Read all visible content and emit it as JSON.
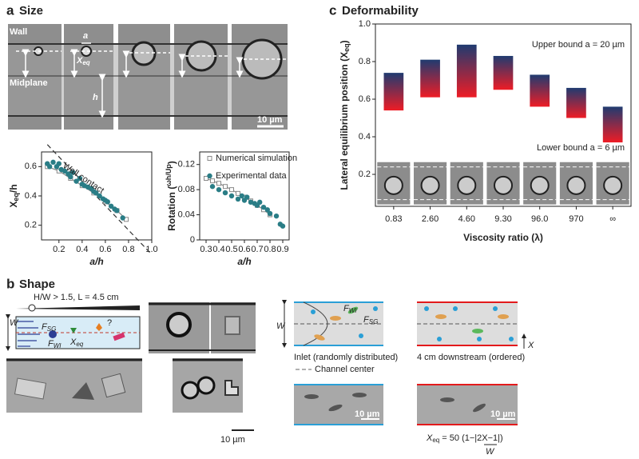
{
  "panel_a": {
    "label": "a",
    "title": "Size",
    "wall": "Wall",
    "midplane": "Midplane",
    "a": "a",
    "xeq": "X",
    "xeq_sub": "eq",
    "h": "h",
    "scale": "10 µm"
  },
  "panel_b": {
    "label": "b",
    "title": "Shape",
    "channel": "H/W > 1.5, L = 4.5 cm",
    "w": "W",
    "fsg": "F",
    "fsg_sub": "SG",
    "fwi": "F",
    "fwi_sub": "WI",
    "xeq": "X",
    "xeq_sub": "eq",
    "q": "?",
    "scale": "10 µm",
    "inlet": "Inlet (randomly distributed)",
    "center": "Channel center",
    "downstream": "4 cm downstream (ordered)",
    "x": "X",
    "w2": "W",
    "scale2": "10 µm",
    "formula": {
      "x": "X",
      "sub": "eq",
      "rest": " = 50 (1−|",
      "num": "2X",
      "end": "−1|)",
      "den": "W"
    }
  },
  "panel_c": {
    "label": "c",
    "title": "Deformability"
  },
  "chart_data": [
    {
      "type": "scatter",
      "xlabel": {
        "main": "a/h"
      },
      "ylabel": {
        "x": "X",
        "sub": "eq",
        "rest": "/h"
      },
      "annotation": "Wall contact",
      "xlim": [
        0.05,
        1.0
      ],
      "ylim": [
        0.1,
        0.7
      ],
      "xticks": [
        0.2,
        0.4,
        0.6,
        0.8,
        {
          "value": 1,
          "label": "1.0"
        }
      ],
      "yticks": [
        0.2,
        0.4,
        0.6
      ],
      "series": [
        {
          "style": "dashed",
          "color": "#333333",
          "x": [
            0.1,
            1.0
          ],
          "values": [
            0.75,
            0.0
          ]
        },
        {
          "style": "line",
          "color": "#888888",
          "x": [
            0.1,
            0.2,
            0.3,
            0.4,
            0.5,
            0.6,
            0.7,
            0.78
          ],
          "values": [
            0.6,
            0.57,
            0.52,
            0.47,
            0.42,
            0.36,
            0.3,
            0.24
          ]
        },
        {
          "style": "markers",
          "color": "#2a7d86",
          "x": [
            0.1,
            0.12,
            0.15,
            0.18,
            0.2,
            0.22,
            0.25,
            0.28,
            0.3,
            0.32,
            0.35,
            0.38,
            0.4,
            0.42,
            0.45,
            0.48,
            0.5,
            0.52,
            0.55,
            0.58,
            0.6,
            0.62,
            0.65,
            0.68,
            0.7,
            0.75
          ],
          "values": [
            0.62,
            0.6,
            0.63,
            0.6,
            0.62,
            0.58,
            0.57,
            0.55,
            0.53,
            0.56,
            0.5,
            0.52,
            0.48,
            0.47,
            0.46,
            0.45,
            0.43,
            0.42,
            0.4,
            0.38,
            0.37,
            0.36,
            0.33,
            0.31,
            0.3,
            0.25
          ]
        }
      ]
    },
    {
      "type": "scatter",
      "xlabel": {
        "main": "a/h"
      },
      "ylabel": {
        "x": "Rotation (",
        "sub": "ωh/Up",
        "rest": ")"
      },
      "xlim": [
        0.25,
        0.95
      ],
      "ylim": [
        0,
        0.14
      ],
      "xticks": [
        0.3,
        0.4,
        0.5,
        0.6,
        0.7,
        0.8,
        0.9
      ],
      "yticks": [
        0,
        0.04,
        0.08,
        0.12
      ],
      "series": [
        {
          "name": "Numerical simulation",
          "style": "line",
          "color": "#888888",
          "x": [
            0.3,
            0.35,
            0.4,
            0.45,
            0.5,
            0.55,
            0.6,
            0.65,
            0.7,
            0.75,
            0.8
          ],
          "values": [
            0.098,
            0.094,
            0.09,
            0.085,
            0.08,
            0.074,
            0.068,
            0.062,
            0.055,
            0.048,
            0.04
          ]
        },
        {
          "name": "Experimental data",
          "style": "markers",
          "color": "#2a7d86",
          "x": [
            0.35,
            0.4,
            0.45,
            0.5,
            0.55,
            0.58,
            0.6,
            0.62,
            0.65,
            0.68,
            0.7,
            0.72,
            0.75,
            0.78,
            0.8,
            0.85,
            0.88,
            0.9
          ],
          "values": [
            0.085,
            0.08,
            0.075,
            0.07,
            0.065,
            0.07,
            0.063,
            0.068,
            0.06,
            0.058,
            0.055,
            0.06,
            0.052,
            0.048,
            0.042,
            0.038,
            0.025,
            0.022
          ]
        }
      ]
    },
    {
      "type": "range_bar",
      "xlabel": {
        "main": "Viscosity ratio (λ)"
      },
      "ylabel": {
        "x": "Lateral equilibrium position (X",
        "sub": "eq",
        "rest": ")"
      },
      "categories": [
        "0.83",
        "2.60",
        "4.60",
        "9.30",
        "96.0",
        "970",
        "∞"
      ],
      "high": [
        0.74,
        0.81,
        0.89,
        0.83,
        0.73,
        0.66,
        0.56
      ],
      "low": [
        0.54,
        0.61,
        0.61,
        0.65,
        0.56,
        0.5,
        0.37
      ],
      "colors": {
        "top": "#1f3b70",
        "bottom": "#ee1c25"
      },
      "upper_label": "Upper bound a = 20 µm",
      "lower_label": "Lower bound a = 6 µm",
      "ylim": [
        0.03,
        1.0
      ],
      "yticks": [
        0.2,
        0.4,
        0.6,
        0.8,
        {
          "value": 1,
          "label": "1.0"
        }
      ]
    }
  ]
}
